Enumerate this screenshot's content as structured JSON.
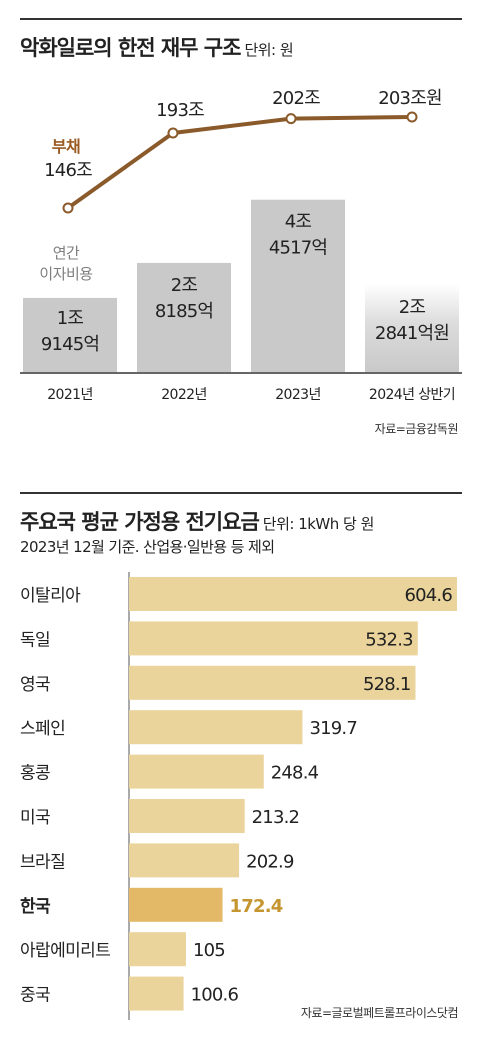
{
  "chart1": {
    "title": "악화일로의 한전 재무 구조",
    "unit": "단위: 원",
    "source": "자료=금융감독원",
    "debt_series_label": "부채",
    "interest_series_label_line1": "연간",
    "interest_series_label_line2": "이자비용",
    "debt_labels": [
      "146조",
      "193조",
      "202조",
      "203조원"
    ],
    "interest_labels": [
      [
        "1조",
        "9145억"
      ],
      [
        "2조",
        "8185억"
      ],
      [
        "4조",
        "4517억"
      ],
      [
        "2조",
        "2841억원"
      ]
    ],
    "colors": {
      "line": "#8B5A2B",
      "bar": "#c9c9c9",
      "label_brown": "#9a5a22",
      "label_gray": "#7f7f7f"
    }
  },
  "chart2": {
    "title": "주요국 평균 가정용 전기요금",
    "unit": "단위: 1kWh 당 원",
    "subtitle": "2023년 12월 기준. 산업용·일반용 등 제외",
    "source": "자료=글로벌페트롤프라이스닷컴",
    "highlight_index": 7,
    "colors": {
      "bar": "#ead49b",
      "highlight_bar": "#e3b866",
      "highlight_text": "#c5952f"
    }
  },
  "chart_data": [
    {
      "type": "bar",
      "title": "악화일로의 한전 재무 구조",
      "unit": "원",
      "categories": [
        "2021년",
        "2022년",
        "2023년",
        "2024년 상반기"
      ],
      "series": [
        {
          "name": "부채",
          "type": "line",
          "values": [
            1460000000000000,
            1930000000000000,
            2020000000000000,
            2030000000000000
          ]
        },
        {
          "name": "연간 이자비용",
          "type": "bar",
          "values": [
            19145000000000,
            28185000000000,
            44517000000000,
            22841000000000
          ]
        }
      ]
    },
    {
      "type": "bar",
      "orientation": "horizontal",
      "title": "주요국 평균 가정용 전기요금",
      "unit": "1kWh 당 원",
      "categories": [
        "이탈리아",
        "독일",
        "영국",
        "스페인",
        "홍콩",
        "미국",
        "브라질",
        "한국",
        "아랍에미리트",
        "중국"
      ],
      "values": [
        604.6,
        532.3,
        528.1,
        319.7,
        248.4,
        213.2,
        202.9,
        172.4,
        105,
        100.6
      ]
    }
  ]
}
